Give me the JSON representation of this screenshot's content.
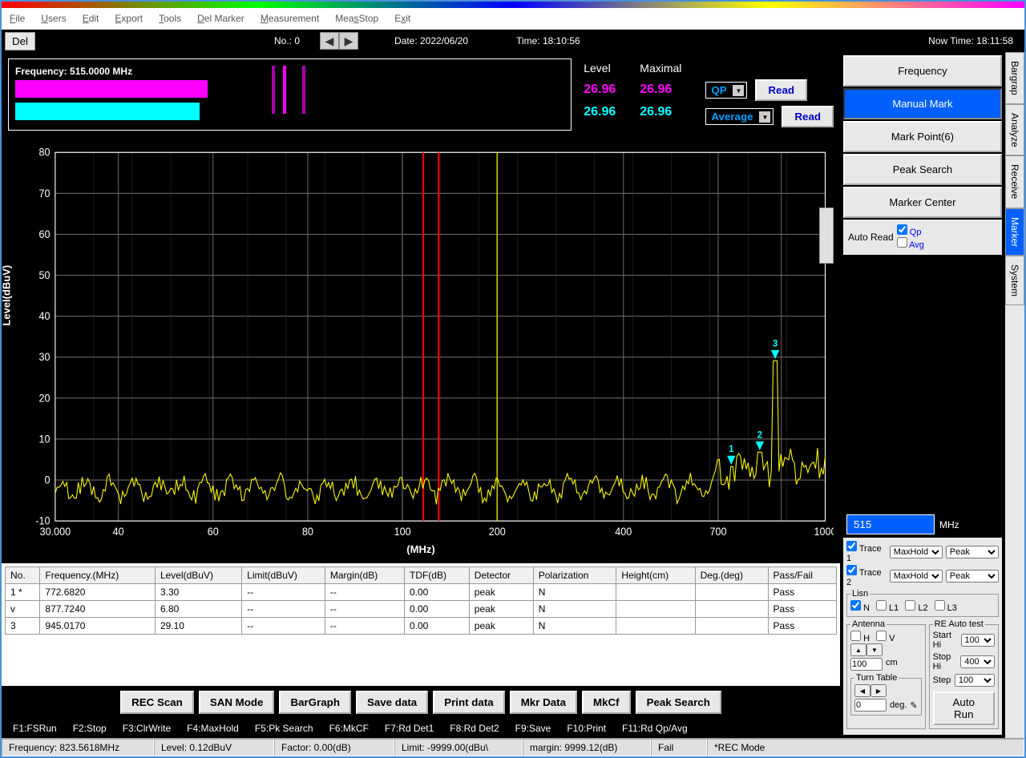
{
  "menubar": [
    "File",
    "Users",
    "Edit",
    "Export",
    "Tools",
    "Del Marker",
    "Measurement",
    "MeasStop",
    "Exit"
  ],
  "toolbar": {
    "del": "Del",
    "no_label": "No.:  0",
    "date_label": "Date: 2022/06/20",
    "time_label": "Time: 18:10:56",
    "nowtime_label": "Now Time:  18:11:58"
  },
  "freq_panel": {
    "title": "Frequency: 515.0000 MHz",
    "bar1_color": "#ff00ff",
    "bar2_color": "#00ffff",
    "vbars": [
      "#aa00aa",
      "#ff00ff",
      "#aa00aa"
    ]
  },
  "level_panel": {
    "level_hdr": "Level",
    "maximal_hdr": "Maximal",
    "row1": {
      "level": "26.96",
      "max": "26.96",
      "det": "QP",
      "read": "Read"
    },
    "row2": {
      "level": "26.96",
      "max": "26.96",
      "det": "Average",
      "read": "Read"
    }
  },
  "chart": {
    "ylabel": "Level(dBuV)",
    "xlabel": "(MHz)",
    "ylim": [
      -10,
      80
    ],
    "ytick_step": 10,
    "yticks": [
      -10,
      0,
      10,
      20,
      30,
      40,
      50,
      60,
      70,
      80
    ],
    "xticks_pos": [
      0,
      0.082,
      0.205,
      0.328,
      0.451,
      0.574,
      0.738,
      0.861,
      0.943,
      1.0
    ],
    "xticks_lbl": [
      "30.000",
      "40",
      "60",
      "80",
      "100",
      "200",
      "400",
      "700",
      "",
      "1000"
    ],
    "xlim_log": [
      30,
      1000
    ],
    "vline_red1_x": 0.478,
    "vline_red2_x": 0.498,
    "vline_yellow_x": 0.574,
    "trace_color": "#ffff00",
    "grid_color": "#666666",
    "background": "#000000",
    "markers": [
      {
        "label": "1",
        "x": 0.878,
        "y_db": 3.3
      },
      {
        "label": "2",
        "x": 0.915,
        "y_db": 6.8
      },
      {
        "label": "3",
        "x": 0.935,
        "y_db": 29.1
      }
    ]
  },
  "table": {
    "headers": [
      "No.",
      "Frequency.(MHz)",
      "Level(dBuV)",
      "Limit(dBuV)",
      "Margin(dB)",
      "TDF(dB)",
      "Detector",
      "Polarization",
      "Height(cm)",
      "Deg.(deg)",
      "Pass/Fail"
    ],
    "rows": [
      [
        "1 *",
        "772.6820",
        "3.30",
        "--",
        "--",
        "0.00",
        "peak",
        "N",
        "",
        "",
        "Pass"
      ],
      [
        "v",
        "877.7240",
        "6.80",
        "--",
        "--",
        "0.00",
        "peak",
        "N",
        "",
        "",
        "Pass"
      ],
      [
        "3",
        "945.0170",
        "29.10",
        "--",
        "--",
        "0.00",
        "peak",
        "N",
        "",
        "",
        "Pass"
      ]
    ]
  },
  "bottom_buttons": [
    "REC Scan",
    "SAN Mode",
    "BarGraph",
    "Save data",
    "Print data",
    "Mkr Data",
    "MkCf",
    "Peak Search"
  ],
  "fn_keys": [
    "F1:FSRun",
    "F2:Stop",
    "F3:ClrWrite",
    "F4:MaxHold",
    "F5:Pk Search",
    "F6:MkCF",
    "F7:Rd Det1",
    "F8:Rd Det2",
    "F9:Save",
    "F10:Print",
    "F11:Rd Qp/Avg"
  ],
  "status": {
    "freq": "Frequency: 823.5618MHz",
    "level": "Level: 0.12dBuV",
    "factor": "Factor: 0.00(dB)",
    "limit": "Limit: -9999.00(dBu\\",
    "margin": "margin: 9999.12(dB)",
    "fail": "Fail",
    "mode": "*REC Mode"
  },
  "right_panel": {
    "buttons": [
      "Frequency",
      "Manual Mark",
      "Mark Point(6)",
      "Peak Search",
      "Marker Center"
    ],
    "active_idx": 1,
    "auto_read": "Auto Read",
    "qp": "Qp",
    "avg": "Avg",
    "freq_input": "515",
    "mhz": "MHz"
  },
  "side_tabs": [
    "Bargrap",
    "Analyze",
    "Receive",
    "Marker",
    "System"
  ],
  "side_tab_active": 3,
  "bottom_right": {
    "trace1": "Trace 1",
    "trace2": "Trace 2",
    "maxhold": "MaxHold",
    "peak": "Peak",
    "lisn": "Lisn",
    "lisn_opts": [
      "N",
      "L1",
      "L2",
      "L3"
    ],
    "antenna": "Antenna",
    "h": "H",
    "v": "V",
    "ant_val": "100",
    "cm": "cm",
    "turntable": "Turn Table",
    "tt_val": "0",
    "deg": "deg.",
    "re_auto": "RE Auto test",
    "start_hi": "Start Hi",
    "start_val": "100",
    "stop_hi": "Stop Hi",
    "stop_val": "400",
    "step": "Step",
    "step_val": "100",
    "autorun": "Auto Run"
  }
}
